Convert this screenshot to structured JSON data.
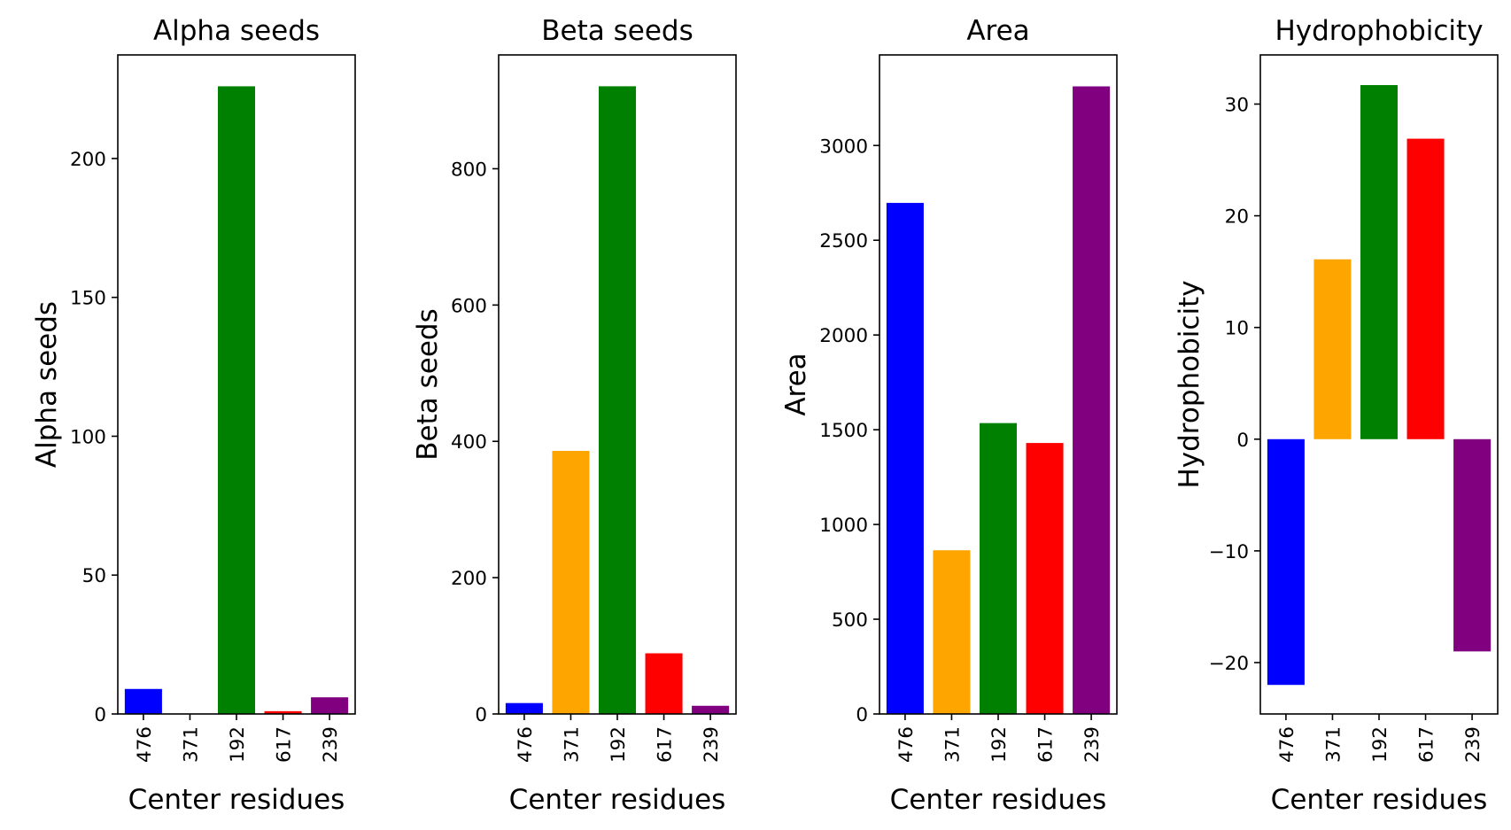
{
  "chart_data": [
    {
      "type": "bar",
      "title": "Alpha seeds",
      "xlabel": "Center residues",
      "ylabel": "Alpha seeds",
      "categories": [
        "476",
        "371",
        "192",
        "617",
        "239"
      ],
      "values": [
        9,
        0,
        226,
        1,
        6
      ],
      "colors": [
        "#0000ff",
        "#ffa500",
        "#008000",
        "#ff0000",
        "#800080"
      ],
      "ylim": [
        0,
        237.3
      ],
      "yticks": [
        0,
        50,
        100,
        150,
        200
      ],
      "ytick_labels": [
        "0",
        "50",
        "100",
        "150",
        "200"
      ],
      "grid": false
    },
    {
      "type": "bar",
      "title": "Beta seeds",
      "xlabel": "Center residues",
      "ylabel": "Beta seeds",
      "categories": [
        "476",
        "371",
        "192",
        "617",
        "239"
      ],
      "values": [
        16,
        386,
        921,
        89,
        12
      ],
      "colors": [
        "#0000ff",
        "#ffa500",
        "#008000",
        "#ff0000",
        "#800080"
      ],
      "ylim": [
        0,
        967
      ],
      "yticks": [
        0,
        200,
        400,
        600,
        800
      ],
      "ytick_labels": [
        "0",
        "200",
        "400",
        "600",
        "800"
      ],
      "grid": false
    },
    {
      "type": "bar",
      "title": "Area",
      "xlabel": "Center residues",
      "ylabel": "Area",
      "categories": [
        "476",
        "371",
        "192",
        "617",
        "239"
      ],
      "values": [
        2697,
        864,
        1535,
        1430,
        3312
      ],
      "colors": [
        "#0000ff",
        "#ffa500",
        "#008000",
        "#ff0000",
        "#800080"
      ],
      "ylim": [
        0,
        3478
      ],
      "yticks": [
        0,
        500,
        1000,
        1500,
        2000,
        2500,
        3000
      ],
      "ytick_labels": [
        "0",
        "500",
        "1000",
        "1500",
        "2000",
        "2500",
        "3000"
      ],
      "grid": false
    },
    {
      "type": "bar",
      "title": "Hydrophobicity",
      "xlabel": "Center residues",
      "ylabel": "Hydrophobicity",
      "categories": [
        "476",
        "371",
        "192",
        "617",
        "239"
      ],
      "values": [
        -22,
        16.1,
        31.7,
        26.9,
        -19
      ],
      "colors": [
        "#0000ff",
        "#ffa500",
        "#008000",
        "#ff0000",
        "#800080"
      ],
      "ylim": [
        -24.6,
        34.4
      ],
      "yticks": [
        -20,
        -10,
        0,
        10,
        20,
        30
      ],
      "ytick_labels": [
        "−20",
        "−10",
        "0",
        "10",
        "20",
        "30"
      ],
      "grid": false
    }
  ]
}
